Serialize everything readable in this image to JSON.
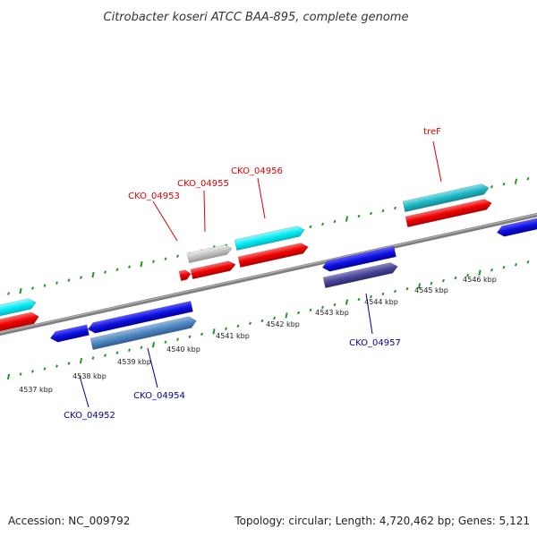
{
  "title": "Citrobacter koseri ATCC BAA-895, complete genome",
  "footer": {
    "accession": "Accession: NC_009792",
    "topology": "Topology: circular; Length: 4,720,462 bp; Genes: 5,121"
  },
  "colors": {
    "backbone": "#8a8a8a",
    "forward_tick": "#1f9a1f",
    "reverse_tick": "#1f9a1f",
    "forward_label": "#dd0000",
    "reverse_label": "#00009a",
    "leader_forward": "#dd0000",
    "leader_reverse": "#00009a"
  },
  "scale_labels": [
    "4537 kbp",
    "4538 kbp",
    "4539 kbp",
    "4540 kbp",
    "4541 kbp",
    "4542 kbp",
    "4543 kbp",
    "4544 kbp",
    "4545 kbp",
    "4546 kbp"
  ],
  "gene_labels": [
    {
      "text": "CKO_04953",
      "strand": "forward"
    },
    {
      "text": "CKO_04955",
      "strand": "forward"
    },
    {
      "text": "CKO_04956",
      "strand": "forward"
    },
    {
      "text": "treF",
      "strand": "forward"
    },
    {
      "text": "CKO_04952",
      "strand": "reverse"
    },
    {
      "text": "CKO_04954",
      "strand": "reverse"
    },
    {
      "text": "CKO_04957",
      "strand": "reverse"
    }
  ]
}
